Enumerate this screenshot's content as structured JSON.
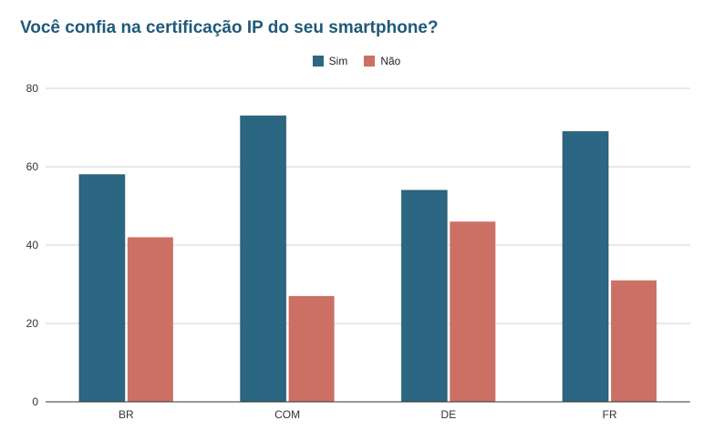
{
  "title": "Você confia na certificação IP do seu smartphone?",
  "colors": {
    "sim": "#2b6682",
    "nao": "#cc7066",
    "grid": "#d0d0d0",
    "axis": "#333333"
  },
  "chart_data": {
    "type": "bar",
    "categories": [
      "BR",
      "COM",
      "DE",
      "FR"
    ],
    "series": [
      {
        "name": "Sim",
        "values": [
          58,
          73,
          54,
          69
        ]
      },
      {
        "name": "Não",
        "values": [
          42,
          27,
          46,
          31
        ]
      }
    ],
    "ylim": [
      0,
      80
    ],
    "yticks": [
      "0",
      "20",
      "40",
      "60",
      "80"
    ],
    "grid": true,
    "legend": "top-center"
  }
}
